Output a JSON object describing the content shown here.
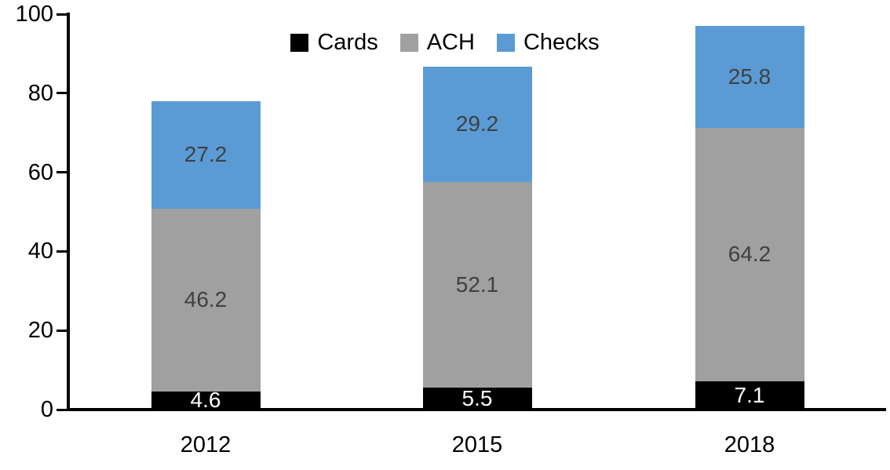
{
  "chart_data": {
    "type": "bar",
    "stacked": true,
    "title": "",
    "categories": [
      "2012",
      "2015",
      "2018"
    ],
    "series": [
      {
        "name": "Cards",
        "color": "#000000",
        "label_color": "#ffffff",
        "values": [
          4.6,
          5.5,
          7.1
        ]
      },
      {
        "name": "ACH",
        "color": "#A0A0A0",
        "label_color": "#404040",
        "values": [
          46.2,
          52.1,
          64.2
        ]
      },
      {
        "name": "Checks",
        "color": "#5B9BD5",
        "label_color": "#404040",
        "values": [
          27.2,
          29.2,
          25.8
        ]
      }
    ],
    "stack_totals": [
      78.0,
      86.8,
      97.1
    ],
    "ylim": [
      0,
      100
    ],
    "yticks": [
      0,
      20,
      40,
      60,
      80,
      100
    ],
    "xlabel": "",
    "ylabel": "",
    "grid": false,
    "legend_position": "top-center",
    "axis_color": "#000000",
    "tick_text_color": "#000000",
    "background_color": "#ffffff"
  }
}
